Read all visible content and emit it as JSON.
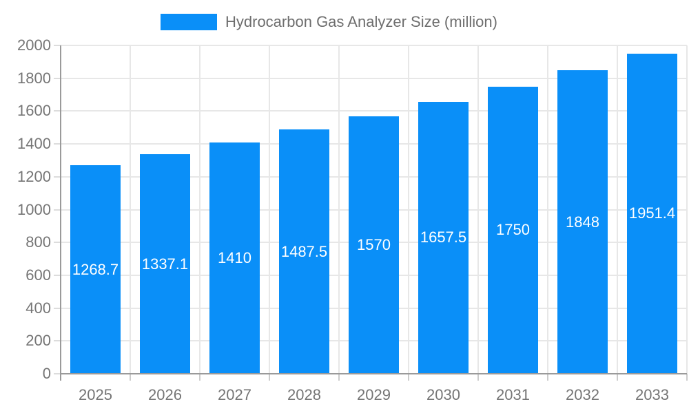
{
  "legend": {
    "label": "Hydrocarbon Gas Analyzer Size (million)"
  },
  "chart_data": {
    "type": "bar",
    "title": "Hydrocarbon Gas Analyzer Size (million)",
    "categories": [
      "2025",
      "2026",
      "2027",
      "2028",
      "2029",
      "2030",
      "2031",
      "2032",
      "2033"
    ],
    "series": [
      {
        "name": "Hydrocarbon Gas Analyzer Size (million)",
        "values": [
          1268.7,
          1337.1,
          1410,
          1487.5,
          1570,
          1657.5,
          1750,
          1848,
          1951.4
        ],
        "labels": [
          "1268.7",
          "1337.1",
          "1410",
          "1487.5",
          "1570",
          "1657.5",
          "1750",
          "1848",
          "1951.4"
        ]
      }
    ],
    "xlabel": "",
    "ylabel": "",
    "ylim": [
      0,
      2000
    ],
    "y_ticks": [
      0,
      200,
      400,
      600,
      800,
      1000,
      1200,
      1400,
      1600,
      1800,
      2000
    ],
    "grid": true,
    "legend_position": "top",
    "colors": {
      "bar": "#0a8ff8",
      "bar_label": "#ffffff",
      "axis_text": "#757575",
      "legend_text": "#6e6e6e",
      "gridline": "#e7e7e7",
      "axis_line": "#9a9a9a"
    }
  }
}
